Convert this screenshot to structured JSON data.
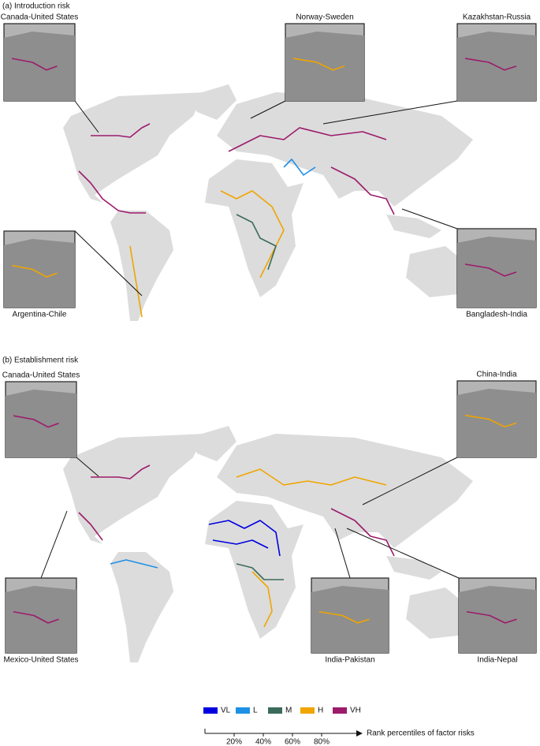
{
  "panels": [
    {
      "title": "(a) Introduction risk",
      "insets": [
        "Canada-United States",
        "Norway-Sweden",
        "Kazakhstan-Russia",
        "Argentina-Chile",
        "Bangladesh-India"
      ]
    },
    {
      "title": "(b) Establishment risk",
      "insets": [
        "Canada-United States",
        "China-India",
        "Mexico-United States",
        "India-Pakistan",
        "India-Nepal"
      ]
    }
  ],
  "legend": {
    "items": [
      {
        "label": "VL",
        "color": "#0000e0"
      },
      {
        "label": "L",
        "color": "#1e90e6"
      },
      {
        "label": "M",
        "color": "#3b6b5b"
      },
      {
        "label": "H",
        "color": "#f0a500"
      },
      {
        "label": "VH",
        "color": "#9c1b6b"
      }
    ]
  },
  "scale": {
    "ticks": [
      "20%",
      "40%",
      "60%",
      "80%"
    ],
    "label": "Rank percentiles of factor risks"
  }
}
